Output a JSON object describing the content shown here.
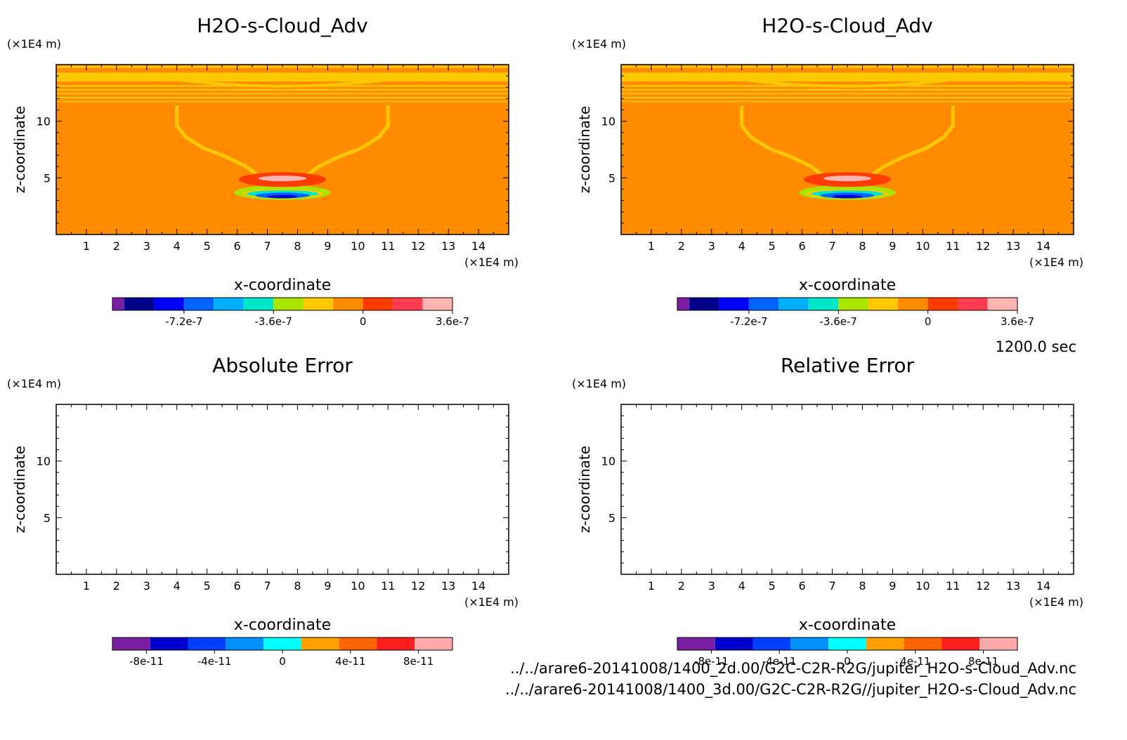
{
  "chart_data": [
    {
      "type": "heatmap",
      "title": "H2O-s-Cloud_Adv",
      "xlabel": "x-coordinate",
      "ylabel": "z-coordinate",
      "x_unit": "(×1E4 m)",
      "y_unit": "(×1E4 m)",
      "xlim": [
        0,
        15
      ],
      "ylim": [
        0,
        15
      ],
      "x_ticks": [
        1,
        2,
        3,
        4,
        5,
        6,
        7,
        8,
        9,
        10,
        11,
        12,
        13,
        14
      ],
      "y_ticks": [
        5,
        10
      ],
      "colorbar": {
        "colors": [
          "#7a1fa2",
          "#00008b",
          "#0000ff",
          "#0064ff",
          "#00b0ff",
          "#00e6c8",
          "#a8e600",
          "#ffc800",
          "#ff8c00",
          "#ff3c00",
          "#ff3c50",
          "#ffb4b4"
        ],
        "tick_values": [
          -7.2e-07,
          -3.6e-07,
          0,
          3.6e-07
        ],
        "tick_labels": [
          "-7.2e-7",
          "-3.6e-7",
          "0",
          "3.6e-7"
        ]
      },
      "field": "filled"
    },
    {
      "type": "heatmap",
      "title": "H2O-s-Cloud_Adv",
      "xlabel": "x-coordinate",
      "ylabel": "z-coordinate",
      "x_unit": "(×1E4 m)",
      "y_unit": "(×1E4 m)",
      "xlim": [
        0,
        15
      ],
      "ylim": [
        0,
        15
      ],
      "x_ticks": [
        1,
        2,
        3,
        4,
        5,
        6,
        7,
        8,
        9,
        10,
        11,
        12,
        13,
        14
      ],
      "y_ticks": [
        5,
        10
      ],
      "colorbar": {
        "colors": [
          "#7a1fa2",
          "#00008b",
          "#0000ff",
          "#0064ff",
          "#00b0ff",
          "#00e6c8",
          "#a8e600",
          "#ffc800",
          "#ff8c00",
          "#ff3c00",
          "#ff3c50",
          "#ffb4b4"
        ],
        "tick_values": [
          -7.2e-07,
          -3.6e-07,
          0,
          3.6e-07
        ],
        "tick_labels": [
          "-7.2e-7",
          "-3.6e-7",
          "0",
          "3.6e-7"
        ]
      },
      "field": "filled"
    },
    {
      "type": "heatmap",
      "title": "Absolute Error",
      "xlabel": "x-coordinate",
      "ylabel": "z-coordinate",
      "x_unit": "(×1E4 m)",
      "y_unit": "(×1E4 m)",
      "xlim": [
        0,
        15
      ],
      "ylim": [
        0,
        15
      ],
      "x_ticks": [
        1,
        2,
        3,
        4,
        5,
        6,
        7,
        8,
        9,
        10,
        11,
        12,
        13,
        14
      ],
      "y_ticks": [
        5,
        10
      ],
      "colorbar": {
        "colors": [
          "#7a1fa2",
          "#0000cd",
          "#0040ff",
          "#0090ff",
          "#00ffff",
          "#ffa000",
          "#ff6400",
          "#ff1e1e",
          "#ffaaaa"
        ],
        "tick_values": [
          -8e-11,
          -4e-11,
          0,
          4e-11,
          8e-11
        ],
        "tick_labels": [
          "-8e-11",
          "-4e-11",
          "0",
          "4e-11",
          "8e-11"
        ]
      },
      "field": "empty"
    },
    {
      "type": "heatmap",
      "title": "Relative Error",
      "xlabel": "x-coordinate",
      "ylabel": "z-coordinate",
      "x_unit": "(×1E4 m)",
      "y_unit": "(×1E4 m)",
      "xlim": [
        0,
        15
      ],
      "ylim": [
        0,
        15
      ],
      "x_ticks": [
        1,
        2,
        3,
        4,
        5,
        6,
        7,
        8,
        9,
        10,
        11,
        12,
        13,
        14
      ],
      "y_ticks": [
        5,
        10
      ],
      "colorbar": {
        "colors": [
          "#7a1fa2",
          "#0000cd",
          "#0040ff",
          "#0090ff",
          "#00ffff",
          "#ffa000",
          "#ff6400",
          "#ff1e1e",
          "#ffaaaa"
        ],
        "tick_values": [
          -8e-11,
          -4e-11,
          0,
          4e-11,
          8e-11
        ],
        "tick_labels": [
          "-8e-11",
          "-4e-11",
          "0",
          "4e-11",
          "8e-11"
        ]
      },
      "field": "empty"
    }
  ],
  "time_label": "1200.0 sec",
  "footer": {
    "path1": "../../arare6-20141008/1400_2d.00/G2C-C2R-R2G/jupiter_H2O-s-Cloud_Adv.nc",
    "path2": "../../arare6-20141008/1400_3d.00/G2C-C2R-R2G//jupiter_H2O-s-Cloud_Adv.nc"
  },
  "field_colors": {
    "background": "#ff8c00",
    "band": "#ffc800",
    "positive_core": "#ff3c00",
    "positive_peak": "#ffb4b4",
    "negative_green": "#a8e600",
    "negative_cyan": "#00e6c8",
    "negative_blue": "#0064ff",
    "negative_core": "#0000cd"
  }
}
